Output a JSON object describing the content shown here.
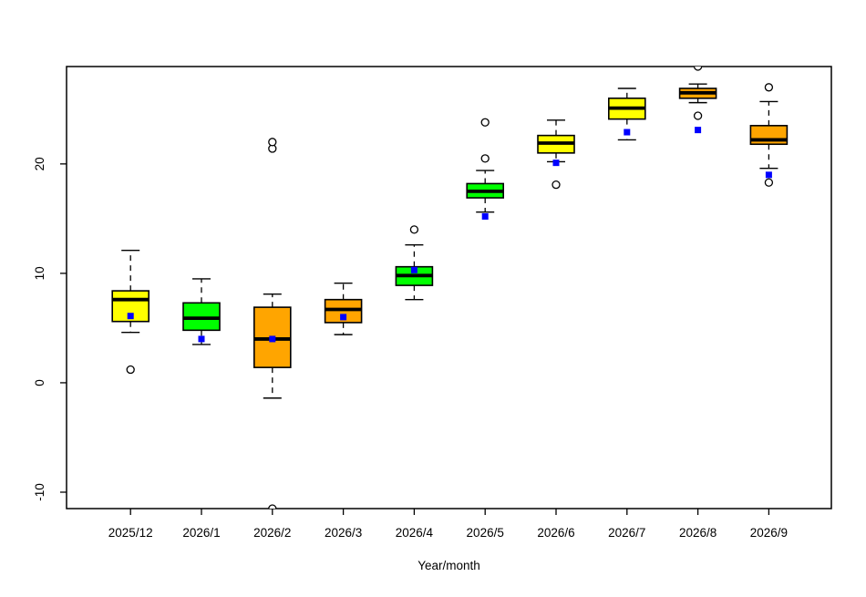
{
  "figure": {
    "background": "#FFFFFF"
  },
  "chart_data": {
    "type": "box",
    "title": "",
    "xlabel": "Year/month",
    "ylabel": "",
    "ylim": [
      -11.5,
      28.9
    ],
    "yticks": [
      -10,
      0,
      10,
      20
    ],
    "grid": false,
    "legend": null,
    "categories": [
      "2025/12",
      "2026/1",
      "2026/2",
      "2026/3",
      "2026/4",
      "2026/5",
      "2026/6",
      "2026/7",
      "2026/8",
      "2026/9"
    ],
    "boxes": [
      {
        "category": "2025/12",
        "color": "#FFFF00",
        "whisker_low": 4.6,
        "q1": 5.6,
        "median": 7.6,
        "q3": 8.4,
        "whisker_high": 12.1,
        "mean": 6.1,
        "outliers": [
          1.2
        ]
      },
      {
        "category": "2026/1",
        "color": "#00FF00",
        "whisker_low": 3.5,
        "q1": 4.8,
        "median": 5.9,
        "q3": 7.3,
        "whisker_high": 9.5,
        "mean": 4.0,
        "outliers": []
      },
      {
        "category": "2026/2",
        "color": "#FFA500",
        "whisker_low": -1.4,
        "q1": 1.4,
        "median": 4.0,
        "q3": 6.9,
        "whisker_high": 8.1,
        "mean": 4.0,
        "outliers": [
          21.4,
          22.0,
          -11.5
        ]
      },
      {
        "category": "2026/3",
        "color": "#FFA500",
        "whisker_low": 4.4,
        "q1": 5.5,
        "median": 6.7,
        "q3": 7.6,
        "whisker_high": 9.1,
        "mean": 6.0,
        "outliers": []
      },
      {
        "category": "2026/4",
        "color": "#00FF00",
        "whisker_low": 7.6,
        "q1": 8.9,
        "median": 9.8,
        "q3": 10.6,
        "whisker_high": 12.6,
        "mean": 10.3,
        "outliers": [
          14.0
        ]
      },
      {
        "category": "2026/5",
        "color": "#00FF00",
        "whisker_low": 15.6,
        "q1": 16.9,
        "median": 17.5,
        "q3": 18.2,
        "whisker_high": 19.4,
        "mean": 15.2,
        "outliers": [
          20.5,
          23.8
        ]
      },
      {
        "category": "2026/6",
        "color": "#FFFF00",
        "whisker_low": 20.2,
        "q1": 21.0,
        "median": 21.9,
        "q3": 22.6,
        "whisker_high": 24.0,
        "mean": 20.1,
        "outliers": [
          18.1
        ]
      },
      {
        "category": "2026/7",
        "color": "#FFFF00",
        "whisker_low": 22.2,
        "q1": 24.1,
        "median": 25.1,
        "q3": 26.0,
        "whisker_high": 26.9,
        "mean": 22.9,
        "outliers": []
      },
      {
        "category": "2026/8",
        "color": "#FFA500",
        "whisker_low": 25.6,
        "q1": 26.0,
        "median": 26.5,
        "q3": 26.9,
        "whisker_high": 27.3,
        "mean": 23.1,
        "outliers": [
          24.4,
          28.9
        ]
      },
      {
        "category": "2026/9",
        "color": "#FFA500",
        "whisker_low": 19.6,
        "q1": 21.8,
        "median": 22.2,
        "q3": 23.5,
        "whisker_high": 25.7,
        "mean": 19.0,
        "outliers": [
          18.3,
          27.0
        ]
      }
    ],
    "mean_marker": {
      "shape": "square",
      "color": "#0000FF"
    },
    "outlier_marker": {
      "shape": "open-circle",
      "fill": "#FFFFFF",
      "stroke": "#000000"
    },
    "whisker_style": "dashed",
    "median_color": "#000000",
    "box_border_color": "#000000"
  }
}
